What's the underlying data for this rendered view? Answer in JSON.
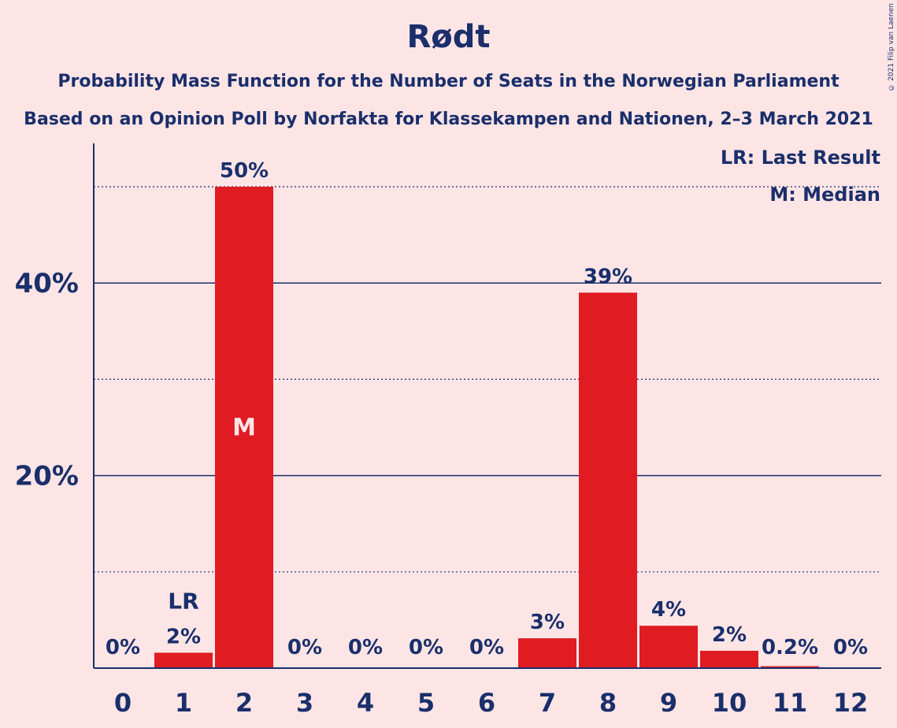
{
  "title": "Rødt",
  "subtitle": "Probability Mass Function for the Number of Seats in the Norwegian Parliament",
  "subtitle2": "Based on an Opinion Poll by Norfakta for Klassekampen and Nationen, 2–3 March 2021",
  "copyright": "© 2021 Filip van Laenen",
  "legend": {
    "last_result": "LR: Last Result",
    "median": "M: Median"
  },
  "colors": {
    "background": "#fde5e6",
    "bar": "#e01b22",
    "text": "#1a2f6b"
  },
  "chart_data": {
    "type": "bar",
    "categories": [
      "0",
      "1",
      "2",
      "3",
      "4",
      "5",
      "6",
      "7",
      "8",
      "9",
      "10",
      "11",
      "12"
    ],
    "values": [
      0,
      1.6,
      50,
      0,
      0,
      0,
      0,
      3.1,
      39,
      4.4,
      1.8,
      0.2,
      0
    ],
    "data_labels": [
      "0%",
      "2%",
      "50%",
      "0%",
      "0%",
      "0%",
      "0%",
      "3%",
      "39%",
      "4%",
      "2%",
      "0.2%",
      "0%"
    ],
    "y_ticks": [
      {
        "value": 20,
        "label": "20%"
      },
      {
        "value": 40,
        "label": "40%"
      }
    ],
    "minor_gridlines": [
      10,
      30,
      50
    ],
    "ylim": [
      0,
      54.4
    ],
    "last_result": {
      "category": "1",
      "label": "LR"
    },
    "median": {
      "category": "2",
      "label": "M"
    },
    "xlabel": "",
    "ylabel": ""
  }
}
